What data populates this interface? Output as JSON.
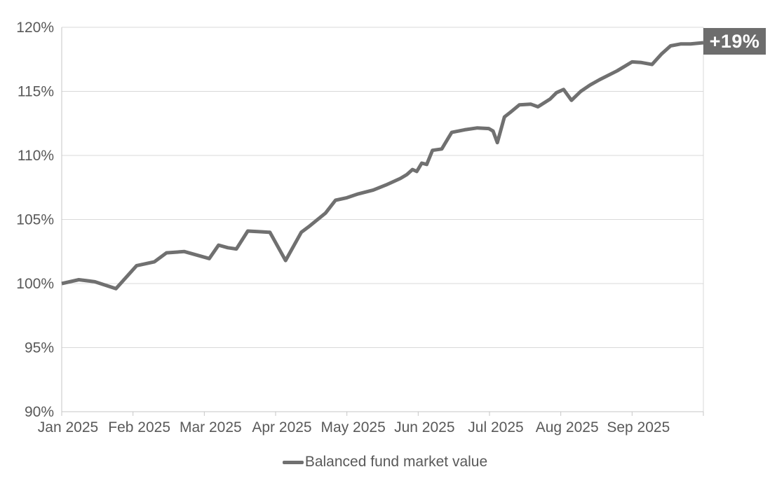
{
  "chart_data": {
    "type": "line",
    "title": "",
    "xlabel": "",
    "ylabel": "",
    "grid": "horizontal",
    "legend_position": "bottom-center",
    "xlim_months": [
      0,
      9
    ],
    "ylim": [
      90,
      120
    ],
    "y_ticks": [
      90,
      95,
      100,
      105,
      110,
      115,
      120
    ],
    "y_tick_labels": [
      "90%",
      "95%",
      "100%",
      "105%",
      "110%",
      "115%",
      "120%"
    ],
    "x_tick_labels": [
      "Jan 2025",
      "Feb 2025",
      "Mar 2025",
      "Apr 2025",
      "May 2025",
      "Jun 2025",
      "Jul 2025",
      "Aug 2025",
      "Sep 2025"
    ],
    "end_label": "+19%",
    "end_label_bg": "#6d6d6d",
    "end_label_color": "#ffffff",
    "axis_text_color": "#595959",
    "gridline_color": "#d9d9d9",
    "axis_line_color": "#c6c6c6",
    "series": [
      {
        "name": "Balanced fund market value",
        "color": "#707070",
        "points": [
          [
            0.0,
            100.0
          ],
          [
            0.24,
            100.3
          ],
          [
            0.46,
            100.15
          ],
          [
            0.76,
            99.6
          ],
          [
            1.05,
            101.4
          ],
          [
            1.3,
            101.7
          ],
          [
            1.47,
            102.4
          ],
          [
            1.72,
            102.5
          ],
          [
            2.07,
            101.95
          ],
          [
            2.2,
            103.0
          ],
          [
            2.33,
            102.8
          ],
          [
            2.45,
            102.7
          ],
          [
            2.61,
            104.1
          ],
          [
            2.77,
            104.05
          ],
          [
            2.92,
            104.0
          ],
          [
            3.14,
            101.8
          ],
          [
            3.36,
            104.0
          ],
          [
            3.48,
            104.5
          ],
          [
            3.7,
            105.5
          ],
          [
            3.84,
            106.5
          ],
          [
            4.0,
            106.7
          ],
          [
            4.16,
            107.0
          ],
          [
            4.37,
            107.3
          ],
          [
            4.55,
            107.7
          ],
          [
            4.75,
            108.2
          ],
          [
            4.84,
            108.5
          ],
          [
            4.92,
            108.9
          ],
          [
            4.98,
            108.75
          ],
          [
            5.05,
            109.4
          ],
          [
            5.12,
            109.3
          ],
          [
            5.2,
            110.4
          ],
          [
            5.33,
            110.5
          ],
          [
            5.47,
            111.8
          ],
          [
            5.65,
            112.0
          ],
          [
            5.83,
            112.15
          ],
          [
            5.99,
            112.1
          ],
          [
            6.05,
            111.9
          ],
          [
            6.11,
            111.0
          ],
          [
            6.21,
            113.0
          ],
          [
            6.3,
            113.4
          ],
          [
            6.42,
            113.95
          ],
          [
            6.58,
            114.0
          ],
          [
            6.68,
            113.8
          ],
          [
            6.85,
            114.4
          ],
          [
            6.94,
            114.9
          ],
          [
            7.04,
            115.15
          ],
          [
            7.15,
            114.3
          ],
          [
            7.28,
            115.0
          ],
          [
            7.41,
            115.5
          ],
          [
            7.54,
            115.9
          ],
          [
            7.79,
            116.6
          ],
          [
            8.0,
            117.3
          ],
          [
            8.13,
            117.25
          ],
          [
            8.28,
            117.1
          ],
          [
            8.41,
            117.9
          ],
          [
            8.54,
            118.55
          ],
          [
            8.68,
            118.7
          ],
          [
            8.82,
            118.7
          ],
          [
            9.0,
            118.8
          ]
        ]
      }
    ]
  }
}
